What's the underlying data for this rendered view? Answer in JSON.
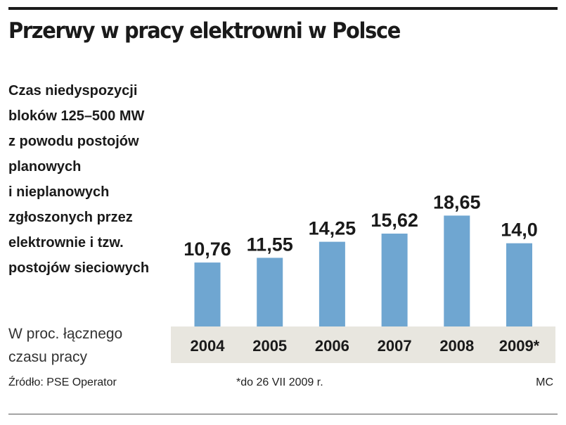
{
  "header": {
    "title": "Przerwy w pracy elektrowni w Polsce"
  },
  "description_lines": [
    "Czas niedyspozycji",
    "bloków 125–500 MW",
    "z powodu postojów",
    "planowych",
    "i nieplanowych",
    "zgłoszonych przez",
    "elektrownie i tzw.",
    "postojów sieciowych"
  ],
  "unit_lines": [
    "W proc. łącznego",
    "czasu pracy"
  ],
  "footer": {
    "source": "Źródło: PSE Operator",
    "note": "*do 26 VII 2009 r.",
    "author": "MC"
  },
  "colors": {
    "bar": "#6fa6d1",
    "category_band": "#e8e6df",
    "text": "#1a1a1a"
  },
  "chart_data": {
    "type": "bar",
    "categories": [
      "2004",
      "2005",
      "2006",
      "2007",
      "2008",
      "2009*"
    ],
    "values": [
      10.76,
      11.55,
      14.25,
      15.62,
      18.65,
      14.0
    ],
    "value_labels": [
      "10,76",
      "11,55",
      "14,25",
      "15,62",
      "18,65",
      "14,0"
    ],
    "title": "Przerwy w pracy elektrowni w Polsce",
    "ylabel": "W proc. łącznego czasu pracy",
    "ylim": [
      0,
      20
    ],
    "grid": false,
    "legend": "none"
  }
}
